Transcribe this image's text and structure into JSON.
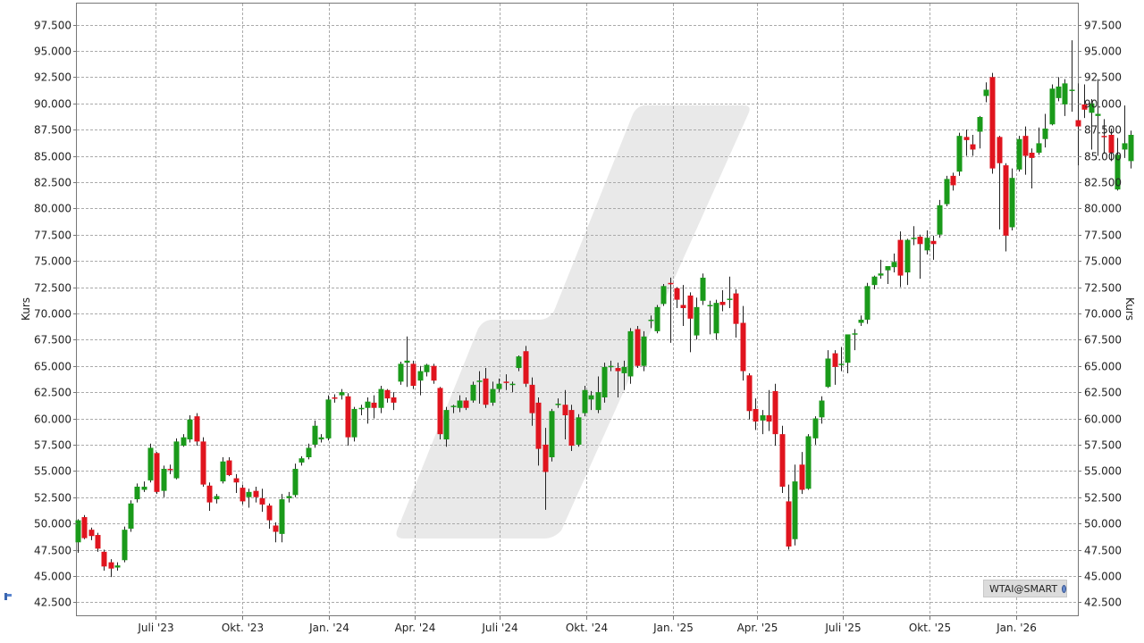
{
  "chart_data": {
    "type": "candlestick",
    "ylabel": "Kurs",
    "ylim": [
      41.25,
      99.5
    ],
    "yticks": [
      "42.500",
      "45.000",
      "47.500",
      "50.000",
      "52.500",
      "55.000",
      "57.500",
      "60.000",
      "62.500",
      "65.000",
      "67.500",
      "70.000",
      "72.500",
      "75.000",
      "77.500",
      "80.000",
      "82.500",
      "85.000",
      "87.500",
      "90.000",
      "92.500",
      "95.000",
      "97.500"
    ],
    "ytick_values": [
      42.5,
      45,
      47.5,
      50,
      52.5,
      55,
      57.5,
      60,
      62.5,
      65,
      67.5,
      70,
      72.5,
      75,
      77.5,
      80,
      82.5,
      85,
      87.5,
      90,
      92.5,
      95,
      97.5
    ],
    "x_range": [
      "2023-04-08",
      "2026-03-08"
    ],
    "xticks": [
      {
        "date": "2023-07-01",
        "label": "Juli '23"
      },
      {
        "date": "2023-10-01",
        "label": "Okt. '23"
      },
      {
        "date": "2024-01-01",
        "label": "Jan. '24"
      },
      {
        "date": "2024-04-01",
        "label": "Apr. '24"
      },
      {
        "date": "2024-07-01",
        "label": "Juli '24"
      },
      {
        "date": "2024-10-01",
        "label": "Okt. '24"
      },
      {
        "date": "2025-01-01",
        "label": "Jan. '25"
      },
      {
        "date": "2025-04-01",
        "label": "Apr. '25"
      },
      {
        "date": "2025-07-01",
        "label": "Juli '25"
      },
      {
        "date": "2025-10-01",
        "label": "Okt. '25"
      },
      {
        "date": "2026-01-01",
        "label": "Jan. '26"
      }
    ],
    "grid": true,
    "up_color": "#1a9a1a",
    "down_color": "#e0141e",
    "start_date": "2023-04-09",
    "period_days": 7,
    "candles": [
      [
        48.2,
        50.4,
        47.2,
        50.3
      ],
      [
        50.6,
        50.8,
        48.5,
        48.6
      ],
      [
        49.4,
        49.6,
        48.4,
        48.8
      ],
      [
        48.9,
        49.1,
        47.3,
        47.6
      ],
      [
        47.3,
        47.5,
        45.5,
        45.9
      ],
      [
        46.3,
        46.6,
        44.9,
        45.7
      ],
      [
        45.8,
        46.3,
        45.5,
        46.0
      ],
      [
        46.5,
        49.7,
        46.3,
        49.4
      ],
      [
        49.5,
        52.2,
        49.2,
        51.9
      ],
      [
        52.3,
        53.8,
        52.0,
        53.5
      ],
      [
        53.2,
        54.0,
        53.0,
        53.5
      ],
      [
        54.1,
        57.6,
        53.9,
        57.2
      ],
      [
        56.7,
        56.8,
        52.8,
        53.0
      ],
      [
        53.1,
        55.5,
        52.5,
        55.2
      ],
      [
        55.2,
        55.6,
        54.7,
        55.1
      ],
      [
        54.3,
        58.1,
        54.2,
        57.8
      ],
      [
        57.4,
        58.5,
        57.3,
        58.2
      ],
      [
        58.0,
        60.3,
        57.7,
        59.9
      ],
      [
        60.2,
        60.5,
        57.4,
        57.8
      ],
      [
        57.8,
        58.2,
        53.5,
        53.7
      ],
      [
        53.6,
        53.9,
        51.2,
        52.0
      ],
      [
        52.3,
        52.8,
        51.9,
        52.6
      ],
      [
        54.0,
        56.3,
        53.8,
        55.9
      ],
      [
        56.0,
        56.3,
        54.5,
        54.6
      ],
      [
        54.3,
        54.7,
        52.9,
        53.9
      ],
      [
        53.4,
        53.7,
        51.8,
        52.1
      ],
      [
        52.5,
        53.3,
        51.5,
        53.0
      ],
      [
        53.1,
        53.5,
        52.0,
        52.5
      ],
      [
        52.4,
        53.3,
        51.1,
        51.8
      ],
      [
        51.7,
        51.9,
        49.5,
        50.3
      ],
      [
        49.8,
        50.1,
        48.2,
        49.2
      ],
      [
        49.0,
        52.8,
        48.2,
        52.3
      ],
      [
        52.4,
        53.0,
        52.0,
        52.6
      ],
      [
        52.7,
        55.7,
        52.5,
        55.2
      ],
      [
        55.8,
        56.4,
        55.5,
        56.2
      ],
      [
        56.3,
        57.6,
        56.1,
        57.2
      ],
      [
        57.5,
        59.8,
        57.2,
        59.3
      ],
      [
        58.0,
        58.5,
        57.7,
        58.2
      ],
      [
        58.1,
        62.2,
        57.9,
        61.8
      ],
      [
        62.0,
        62.3,
        61.5,
        61.9
      ],
      [
        62.2,
        62.8,
        61.8,
        62.5
      ],
      [
        62.1,
        62.4,
        57.4,
        58.2
      ],
      [
        58.2,
        61.1,
        57.8,
        60.9
      ],
      [
        60.9,
        61.3,
        60.3,
        61.0
      ],
      [
        61.0,
        62.0,
        59.5,
        61.6
      ],
      [
        61.5,
        62.2,
        60.0,
        61.0
      ],
      [
        61.0,
        63.1,
        60.5,
        62.8
      ],
      [
        62.7,
        62.8,
        61.5,
        61.9
      ],
      [
        62.0,
        62.5,
        60.8,
        61.5
      ],
      [
        63.5,
        65.4,
        63.2,
        65.2
      ],
      [
        65.3,
        67.8,
        63.0,
        65.5
      ],
      [
        65.2,
        65.5,
        62.8,
        63.1
      ],
      [
        63.6,
        65.0,
        62.2,
        64.5
      ],
      [
        64.4,
        65.2,
        64.0,
        65.1
      ],
      [
        65.0,
        65.2,
        63.3,
        63.6
      ],
      [
        62.9,
        63.0,
        58.0,
        58.5
      ],
      [
        58.0,
        61.1,
        57.3,
        60.8
      ],
      [
        61.2,
        61.3,
        60.5,
        61.2
      ],
      [
        61.0,
        62.2,
        60.6,
        61.7
      ],
      [
        61.7,
        62.0,
        60.8,
        61.0
      ],
      [
        61.7,
        63.5,
        61.5,
        63.2
      ],
      [
        63.5,
        64.5,
        61.4,
        63.6
      ],
      [
        63.8,
        64.8,
        61.0,
        61.3
      ],
      [
        61.5,
        63.5,
        61.2,
        62.8
      ],
      [
        62.8,
        63.8,
        62.5,
        63.3
      ],
      [
        63.5,
        64.2,
        62.7,
        63.4
      ],
      [
        63.2,
        63.5,
        62.5,
        63.3
      ],
      [
        64.8,
        66.0,
        64.5,
        65.9
      ],
      [
        66.4,
        66.9,
        63.0,
        63.3
      ],
      [
        63.2,
        63.9,
        59.3,
        60.5
      ],
      [
        61.5,
        62.0,
        55.5,
        57.1
      ],
      [
        57.5,
        59.1,
        51.3,
        54.9
      ],
      [
        56.3,
        60.9,
        55.9,
        60.7
      ],
      [
        61.4,
        61.9,
        61.0,
        61.4
      ],
      [
        61.3,
        62.7,
        58.0,
        60.3
      ],
      [
        60.8,
        61.3,
        56.9,
        57.4
      ],
      [
        57.5,
        60.4,
        57.3,
        60.1
      ],
      [
        60.5,
        63.1,
        60.2,
        62.7
      ],
      [
        61.8,
        62.6,
        60.8,
        62.2
      ],
      [
        60.8,
        64.0,
        60.5,
        62.5
      ],
      [
        62.0,
        65.3,
        61.5,
        64.9
      ],
      [
        64.9,
        65.5,
        64.5,
        65.0
      ],
      [
        64.8,
        65.3,
        62.0,
        64.5
      ],
      [
        64.3,
        65.5,
        62.7,
        64.9
      ],
      [
        64.0,
        68.6,
        63.3,
        68.3
      ],
      [
        68.5,
        68.8,
        64.8,
        65.0
      ],
      [
        65.0,
        68.3,
        64.5,
        67.8
      ],
      [
        69.3,
        69.8,
        68.6,
        69.4
      ],
      [
        68.3,
        70.8,
        68.1,
        70.6
      ],
      [
        70.9,
        72.8,
        70.7,
        72.6
      ],
      [
        72.9,
        73.4,
        67.2,
        72.8
      ],
      [
        72.4,
        72.5,
        70.5,
        71.3
      ],
      [
        70.8,
        72.7,
        68.8,
        70.5
      ],
      [
        71.7,
        72.0,
        66.3,
        69.5
      ],
      [
        67.9,
        71.5,
        67.5,
        70.6
      ],
      [
        71.2,
        73.8,
        70.8,
        73.4
      ],
      [
        70.8,
        71.2,
        68.0,
        70.8
      ],
      [
        68.1,
        71.3,
        67.5,
        71.0
      ],
      [
        71.1,
        72.2,
        70.2,
        70.8
      ],
      [
        71.3,
        73.5,
        70.5,
        71.4
      ],
      [
        71.9,
        72.3,
        67.7,
        69.0
      ],
      [
        69.1,
        70.7,
        63.6,
        64.5
      ],
      [
        64.1,
        64.3,
        59.9,
        60.7
      ],
      [
        60.9,
        61.9,
        58.9,
        59.7
      ],
      [
        59.8,
        60.8,
        58.5,
        60.3
      ],
      [
        60.3,
        62.7,
        58.8,
        59.7
      ],
      [
        62.6,
        63.3,
        57.4,
        58.5
      ],
      [
        58.5,
        59.3,
        52.9,
        53.5
      ],
      [
        52.1,
        53.7,
        47.5,
        47.8
      ],
      [
        48.5,
        55.6,
        47.9,
        54.0
      ],
      [
        55.6,
        56.8,
        52.8,
        53.2
      ],
      [
        53.3,
        58.5,
        53.2,
        58.3
      ],
      [
        58.1,
        60.2,
        57.5,
        60.0
      ],
      [
        60.1,
        62.1,
        59.5,
        61.7
      ],
      [
        63.0,
        66.5,
        62.9,
        65.7
      ],
      [
        66.2,
        66.5,
        63.2,
        64.9
      ],
      [
        65.1,
        66.8,
        64.5,
        65.2
      ],
      [
        65.3,
        67.8,
        64.3,
        68.0
      ],
      [
        68.0,
        68.5,
        66.5,
        68.1
      ],
      [
        69.1,
        69.8,
        68.8,
        69.4
      ],
      [
        69.4,
        72.9,
        69.0,
        72.6
      ],
      [
        72.7,
        73.6,
        72.3,
        73.5
      ],
      [
        73.6,
        75.1,
        73.3,
        73.8
      ],
      [
        74.1,
        74.4,
        72.8,
        74.5
      ],
      [
        74.4,
        75.7,
        73.9,
        74.9
      ],
      [
        77.0,
        77.8,
        72.5,
        73.6
      ],
      [
        73.9,
        77.1,
        72.7,
        77.0
      ],
      [
        77.1,
        78.3,
        76.5,
        77.2
      ],
      [
        77.3,
        77.5,
        73.3,
        76.6
      ],
      [
        76.0,
        77.9,
        75.6,
        77.2
      ],
      [
        76.9,
        77.4,
        75.1,
        76.6
      ],
      [
        77.5,
        80.8,
        77.2,
        80.3
      ],
      [
        80.4,
        83.1,
        80.2,
        82.8
      ],
      [
        83.1,
        83.4,
        81.7,
        82.2
      ],
      [
        83.5,
        87.2,
        83.1,
        86.9
      ],
      [
        86.8,
        87.5,
        85.0,
        86.5
      ],
      [
        86.1,
        87.0,
        85.0,
        85.6
      ],
      [
        87.3,
        88.8,
        85.7,
        88.7
      ],
      [
        90.7,
        92.0,
        90.1,
        91.3
      ],
      [
        92.5,
        92.9,
        83.3,
        83.8
      ],
      [
        86.8,
        86.9,
        78.0,
        84.3
      ],
      [
        84.1,
        84.3,
        75.9,
        77.4
      ],
      [
        78.2,
        83.8,
        77.9,
        82.9
      ],
      [
        83.7,
        86.9,
        83.5,
        86.6
      ],
      [
        86.9,
        87.8,
        83.2,
        85.0
      ],
      [
        85.3,
        85.7,
        81.9,
        84.8
      ],
      [
        85.3,
        87.7,
        85.1,
        86.2
      ],
      [
        86.6,
        89.0,
        85.8,
        87.6
      ],
      [
        88.0,
        91.8,
        87.9,
        91.4
      ],
      [
        90.5,
        92.5,
        90.2,
        91.6
      ],
      [
        89.9,
        92.3,
        88.8,
        91.9
      ],
      [
        91.2,
        96.0,
        89.2,
        91.3
      ],
      [
        88.4,
        91.9,
        84.1,
        87.8
      ],
      [
        89.9,
        91.8,
        88.6,
        89.4
      ],
      [
        89.1,
        90.4,
        85.6,
        90.0
      ],
      [
        88.8,
        92.3,
        85.0,
        89.0
      ],
      [
        86.9,
        88.5,
        85.2,
        86.8
      ],
      [
        87.0,
        87.6,
        84.5,
        85.3
      ],
      [
        81.8,
        86.7,
        81.7,
        85.1
      ],
      [
        85.6,
        89.8,
        84.8,
        86.2
      ],
      [
        84.5,
        87.4,
        83.8,
        87.0
      ]
    ]
  },
  "badge": {
    "label": "WTAI@SMART",
    "icon": "globe-icon"
  }
}
